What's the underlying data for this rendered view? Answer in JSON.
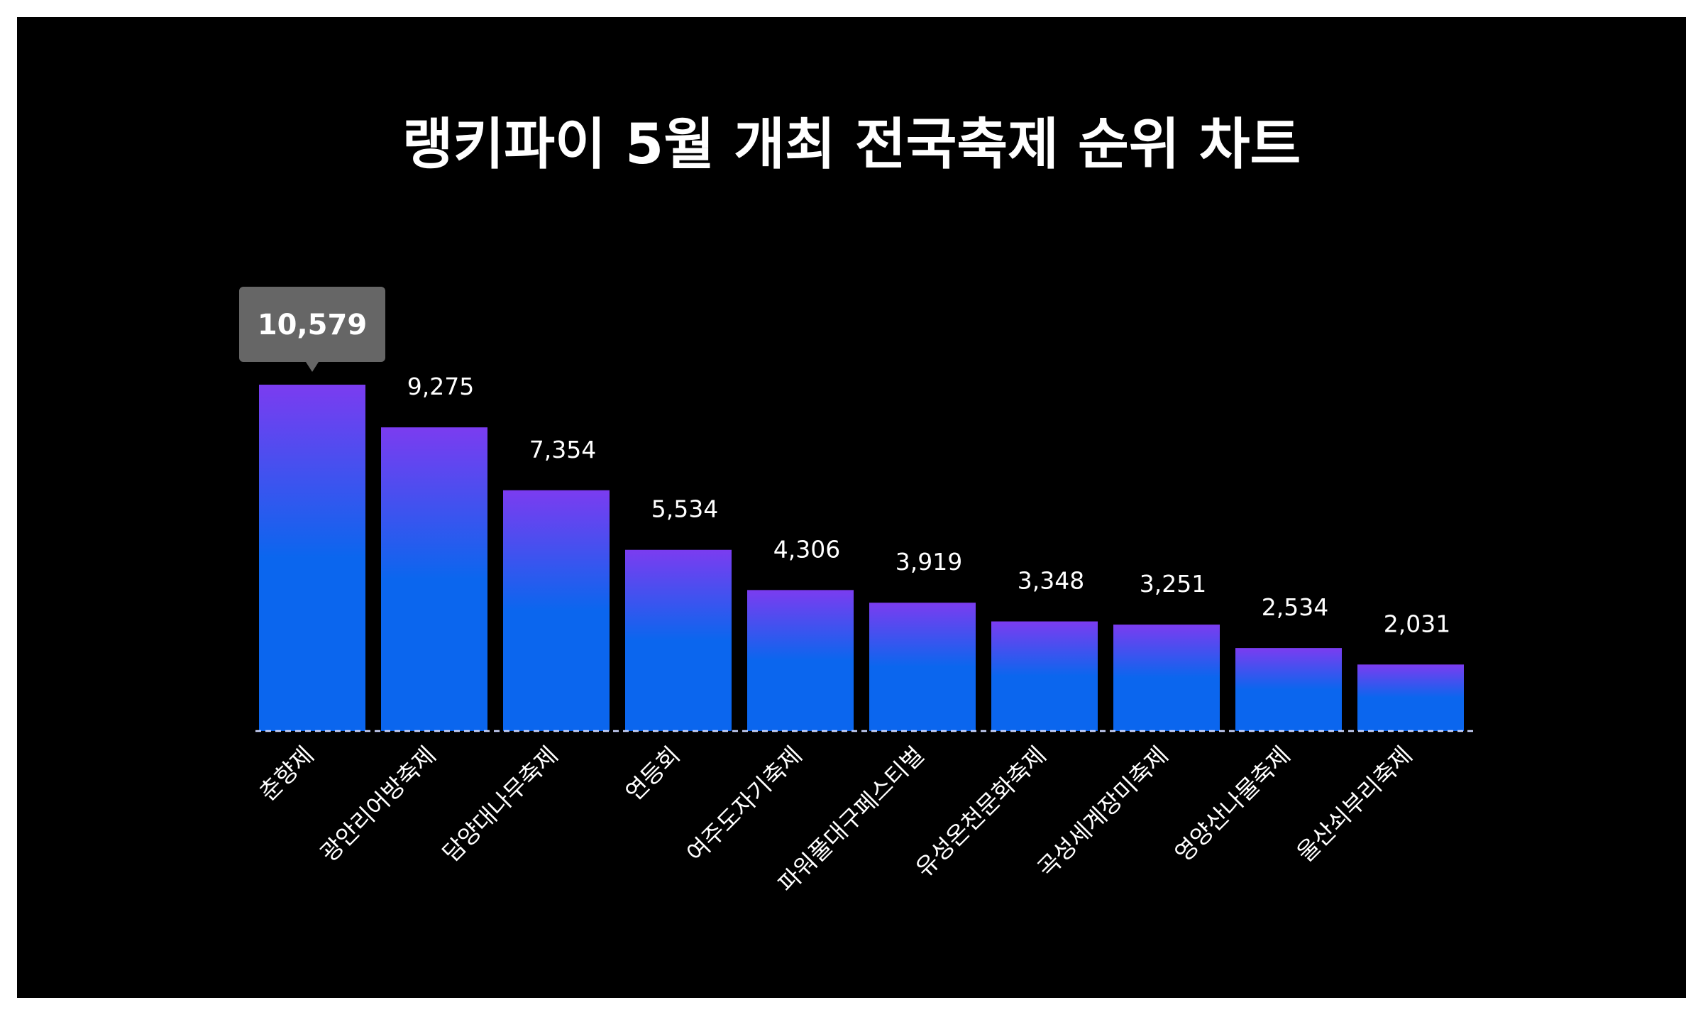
{
  "chart_data": {
    "type": "bar",
    "title": "랭키파이 5월 개최 전국축제 순위 차트",
    "categories": [
      "춘향제",
      "광안리어방축제",
      "담양대나무축제",
      "연등회",
      "여주도자기축제",
      "파워풀대구페스티벌",
      "유성온천문화축제",
      "곡성세계장미축제",
      "영양산나물축제",
      "울산쇠부리축제"
    ],
    "values": [
      10579,
      9275,
      7354,
      5534,
      4306,
      3919,
      3348,
      3251,
      2534,
      2031
    ],
    "value_labels": [
      "10,579",
      "9,275",
      "7,354",
      "5,534",
      "4,306",
      "3,919",
      "3,348",
      "3,251",
      "2,534",
      "2,031"
    ],
    "highlighted_index": 0,
    "ylim": [
      0,
      11000
    ],
    "grid": false,
    "legend": "none",
    "xlabel": "",
    "ylabel": ""
  },
  "colors": {
    "background": "#000000",
    "bar_top": "#7b3cf0",
    "bar_bottom": "#0b66ee",
    "baseline": "#cfd8ff",
    "tooltip_bg": "#666666",
    "text": "#ffffff"
  }
}
